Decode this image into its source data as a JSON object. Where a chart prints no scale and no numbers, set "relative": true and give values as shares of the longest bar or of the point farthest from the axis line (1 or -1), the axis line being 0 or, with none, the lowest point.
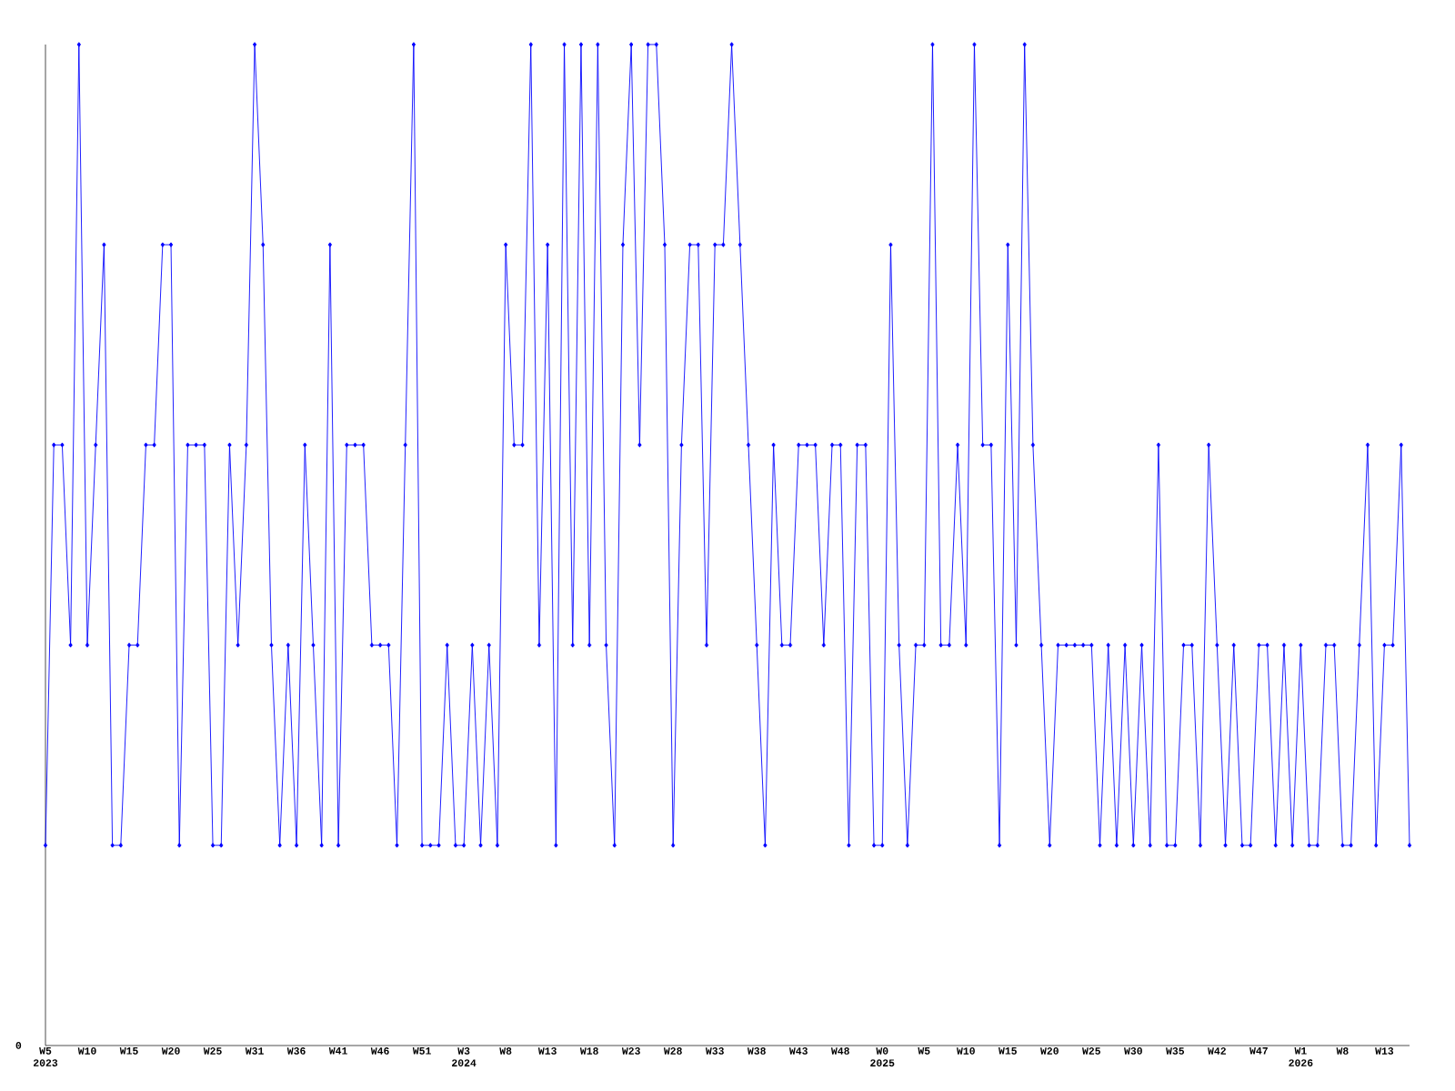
{
  "chart_data": {
    "type": "line",
    "relative": true,
    "marker": "diamond",
    "annotations": [
      "0"
    ],
    "categories": [
      "W5 2023",
      null,
      null,
      null,
      null,
      "W10",
      null,
      null,
      null,
      null,
      "W15",
      null,
      null,
      null,
      null,
      "W20",
      null,
      null,
      null,
      null,
      "W25",
      null,
      null,
      null,
      null,
      "W31",
      null,
      null,
      null,
      null,
      "W36",
      null,
      null,
      null,
      null,
      "W41",
      null,
      null,
      null,
      null,
      "W46",
      null,
      null,
      null,
      null,
      "W51",
      null,
      null,
      null,
      null,
      "W3 2024",
      null,
      null,
      null,
      null,
      "W8",
      null,
      null,
      null,
      null,
      "W13",
      null,
      null,
      null,
      null,
      "W18",
      null,
      null,
      null,
      null,
      "W23",
      null,
      null,
      null,
      null,
      "W28",
      null,
      null,
      null,
      null,
      "W33",
      null,
      null,
      null,
      null,
      "W38",
      null,
      null,
      null,
      null,
      "W43",
      null,
      null,
      null,
      null,
      "W48",
      null,
      null,
      null,
      null,
      "W0 2025",
      null,
      null,
      null,
      null,
      "W5",
      null,
      null,
      null,
      null,
      "W10",
      null,
      null,
      null,
      null,
      "W15",
      null,
      null,
      null,
      null,
      "W20",
      null,
      null,
      null,
      null,
      "W25",
      null,
      null,
      null,
      null,
      "W30",
      null,
      null,
      null,
      null,
      "W35",
      null,
      null,
      null,
      null,
      "W42",
      null,
      null,
      null,
      null,
      "W47",
      null,
      null,
      null,
      null,
      "W1 2026",
      null,
      null,
      null,
      null,
      "W8",
      null,
      null,
      null,
      null,
      "W13",
      null,
      null,
      null
    ],
    "series": [
      {
        "color": "#0000ff",
        "values": [
          0.2,
          0.6,
          0.6,
          0.4,
          1,
          0.4,
          0.6,
          0.8,
          0.2,
          0.2,
          0.4,
          0.4,
          0.6,
          0.6,
          0.8,
          0.8,
          0.2,
          0.6,
          0.6,
          0.6,
          0.2,
          0.2,
          0.6,
          0.4,
          0.6,
          1,
          0.8,
          0.4,
          0.2,
          0.4,
          0.2,
          0.6,
          0.4,
          0.2,
          0.8,
          0.2,
          0.6,
          0.6,
          0.6,
          0.4,
          0.4,
          0.4,
          0.2,
          0.6,
          1,
          0.2,
          0.2,
          0.2,
          0.4,
          0.2,
          0.2,
          0.4,
          0.2,
          0.4,
          0.2,
          0.8,
          0.6,
          0.6,
          1,
          0.4,
          0.8,
          0.2,
          1,
          0.4,
          1,
          0.4,
          1,
          0.4,
          0.2,
          0.8,
          1,
          0.6,
          1,
          1,
          0.8,
          0.2,
          0.6,
          0.8,
          0.8,
          0.4,
          0.8,
          0.8,
          1,
          0.8,
          0.6,
          0.4,
          0.2,
          0.6,
          0.4,
          0.4,
          0.6,
          0.6,
          0.6,
          0.4,
          0.6,
          0.6,
          0.2,
          0.6,
          0.6,
          0.2,
          0.2,
          0.8,
          0.4,
          0.2,
          0.4,
          0.4,
          1,
          0.4,
          0.4,
          0.6,
          0.4,
          1,
          0.6,
          0.6,
          0.2,
          0.8,
          0.4,
          1,
          0.6,
          0.4,
          0.2,
          0.4,
          0.4,
          0.4,
          0.4,
          0.4,
          0.2,
          0.4,
          0.2,
          0.4,
          0.2,
          0.4,
          0.2,
          0.6,
          0.2,
          0.2,
          0.4,
          0.4,
          0.2,
          0.6,
          0.4,
          0.2,
          0.4,
          0.2,
          0.2,
          0.4,
          0.4,
          0.2,
          0.4,
          0.2,
          0.4,
          0.2,
          0.2,
          0.4,
          0.4,
          0.2,
          0.2,
          0.4,
          0.6,
          0.2,
          0.4,
          0.4,
          0.6,
          0.2
        ]
      }
    ]
  }
}
